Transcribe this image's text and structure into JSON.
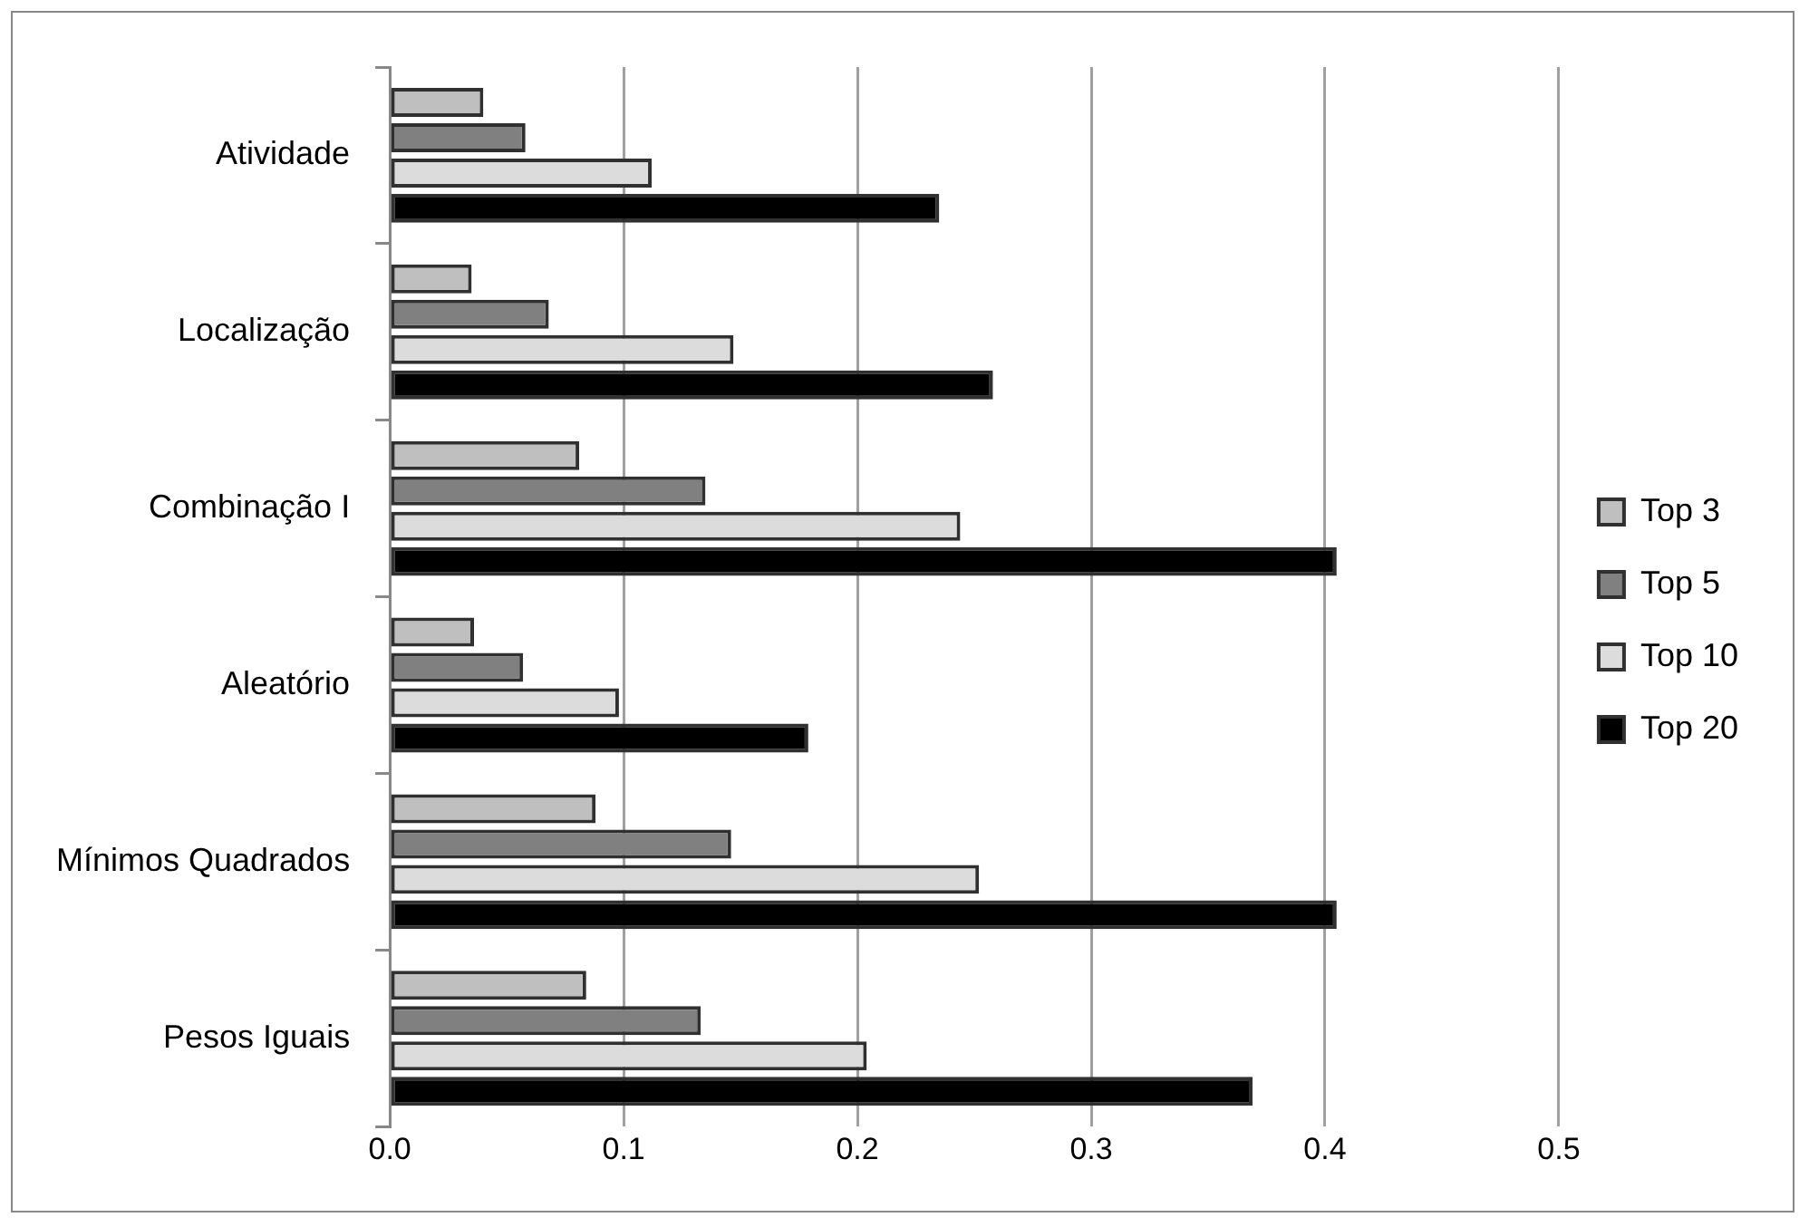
{
  "chart_data": {
    "type": "bar",
    "orientation": "horizontal",
    "categories": [
      "Atividade",
      "Localização",
      "Combinação I",
      "Aleatório",
      "Mínimos Quadrados",
      "Pesos Iguais"
    ],
    "series": [
      {
        "name": "Top 3",
        "color": "#bfbfbf",
        "values": [
          0.04,
          0.035,
          0.081,
          0.036,
          0.088,
          0.084
        ]
      },
      {
        "name": "Top 5",
        "color": "#808080",
        "values": [
          0.058,
          0.068,
          0.135,
          0.057,
          0.146,
          0.133
        ]
      },
      {
        "name": "Top 10",
        "color": "#dcdcdc",
        "values": [
          0.112,
          0.147,
          0.244,
          0.098,
          0.252,
          0.204
        ]
      },
      {
        "name": "Top 20",
        "color": "#000000",
        "values": [
          0.235,
          0.258,
          0.405,
          0.179,
          0.405,
          0.369
        ]
      }
    ],
    "xlim": [
      0,
      0.5
    ],
    "xticks": [
      {
        "value": 0,
        "label": "0.0"
      },
      {
        "value": 0.1,
        "label": "0.1"
      },
      {
        "value": 0.2,
        "label": "0.2"
      },
      {
        "value": 0.3,
        "label": "0.3"
      },
      {
        "value": 0.4,
        "label": "0.4"
      },
      {
        "value": 0.5,
        "label": "0.5"
      }
    ],
    "grid": "x",
    "legend": "right"
  }
}
